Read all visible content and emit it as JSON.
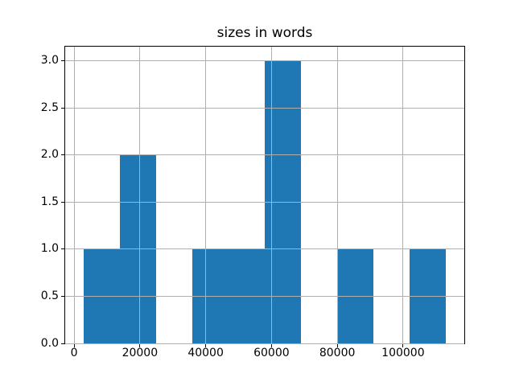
{
  "chart_data": {
    "type": "bar",
    "subtype": "histogram",
    "title": "sizes in words",
    "xlabel": "",
    "ylabel": "",
    "bin_edges": [
      2800,
      13830,
      24860,
      35890,
      46920,
      57950,
      68980,
      80010,
      91040,
      102070,
      113100
    ],
    "counts": [
      1,
      2,
      0,
      1,
      1,
      3,
      0,
      1,
      0,
      1
    ],
    "xticks": [
      0,
      20000,
      40000,
      60000,
      80000,
      100000
    ],
    "xtick_labels": [
      "0",
      "20000",
      "40000",
      "60000",
      "80000",
      "100000"
    ],
    "yticks": [
      0,
      0.5,
      1,
      1.5,
      2,
      2.5,
      3
    ],
    "ytick_labels": [
      "0.0",
      "0.5",
      "1.0",
      "1.5",
      "2.0",
      "2.5",
      "3.0"
    ],
    "xlim": [
      -2715,
      118615
    ],
    "ylim": [
      0,
      3.15
    ],
    "grid": true,
    "grid_above_bars": true,
    "legend": false,
    "bar_color": "#1f77b4",
    "grid_color": "#b0b0b0",
    "spine_color": "#000000",
    "background_color": "#ffffff",
    "text_color": "#000000"
  }
}
